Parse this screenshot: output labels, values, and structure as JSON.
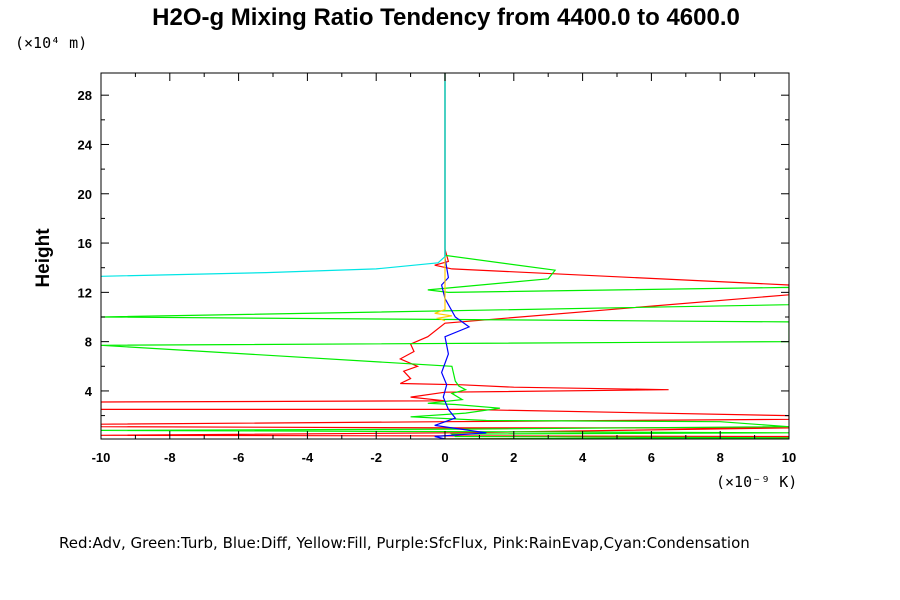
{
  "chart_data": {
    "type": "line",
    "title": "H2O-g Mixing Ratio Tendency from 4400.0 to 4600.0",
    "ylabel": "Height",
    "x_unit_label": "(×10⁻⁹ K)",
    "y_unit_label": "(×10⁴ m)",
    "caption": "Red:Adv, Green:Turb, Blue:Diff, Yellow:Fill, Purple:SfcFlux, Pink:RainEvap,Cyan:Condensation",
    "xlim": [
      -10,
      10
    ],
    "ylim": [
      0.1,
      29.8
    ],
    "xticks": [
      -10,
      -8,
      -6,
      -4,
      -2,
      0,
      2,
      4,
      6,
      8,
      10
    ],
    "yticks": [
      4,
      8,
      12,
      16,
      20,
      24,
      28
    ],
    "xtick_labels": [
      "-10",
      "-8",
      "-6",
      "-4",
      "-2",
      "0",
      "2",
      "4",
      "6",
      "8",
      "10"
    ],
    "ytick_labels": [
      "4",
      "8",
      "12",
      "16",
      "20",
      "24",
      "28"
    ],
    "grid": false,
    "series": [
      {
        "color": "#ff0000",
        "x": [
          0,
          0,
          0.1,
          -0.3,
          0.2,
          10,
          10,
          0,
          -0.5,
          -1,
          -0.9,
          -1.3,
          -0.8,
          -1.2,
          -1.0,
          -1.3,
          0.5,
          2,
          6.5,
          0,
          -1,
          0,
          -10,
          -10,
          0.5,
          10,
          10,
          0,
          -10,
          -10,
          0.5,
          10,
          0.3,
          -10,
          10,
          10,
          0
        ],
        "y": [
          29.8,
          15.5,
          14.5,
          14.2,
          13.9,
          12.6,
          11.8,
          9.5,
          8.4,
          7.8,
          7.2,
          6.6,
          6.0,
          5.6,
          5.0,
          4.6,
          4.5,
          4.3,
          4.1,
          3.9,
          3.5,
          3.2,
          3.1,
          2.5,
          2.5,
          2.0,
          1.7,
          1.5,
          1.3,
          1.1,
          1.0,
          1.0,
          0.6,
          0.4,
          0.3,
          0.2,
          0.1
        ]
      },
      {
        "color": "#00ee00",
        "x": [
          0,
          0,
          3.2,
          3.0,
          -0.5,
          0.1,
          10,
          10,
          -10,
          10,
          10,
          -10,
          0.2,
          0.3,
          0.4,
          0.6,
          0.2,
          0.5,
          -0.5,
          0.3,
          1.6,
          0.6,
          -1,
          1.2,
          8,
          10,
          0.5,
          -10,
          10,
          0.2,
          0.3,
          10,
          0
        ],
        "y": [
          29.8,
          15.0,
          13.8,
          13.1,
          12.2,
          12.0,
          12.4,
          11.0,
          10.0,
          9.6,
          8.0,
          7.7,
          6.0,
          4.8,
          4.4,
          4.1,
          3.8,
          3.3,
          3.0,
          2.9,
          2.6,
          2.2,
          1.9,
          1.6,
          1.5,
          1.1,
          0.9,
          0.8,
          0.6,
          0.5,
          0.3,
          0.2,
          0.1
        ]
      },
      {
        "color": "#0000ff",
        "x": [
          0,
          0,
          0.1,
          -0.1,
          0,
          0.3,
          0.7,
          0,
          0.1,
          -0.1,
          0.05,
          -0.05,
          0.1,
          0.3,
          -0.3,
          1.2,
          -0.3,
          0
        ],
        "y": [
          29.8,
          14.8,
          13.2,
          12.6,
          11.5,
          10.0,
          9.2,
          8.4,
          7.0,
          5.5,
          4.5,
          3.5,
          2.5,
          1.8,
          1.2,
          0.6,
          0.3,
          0.1
        ]
      },
      {
        "color": "#ffcc00",
        "x": [
          0,
          0,
          -0.3,
          0.2,
          -0.2,
          0
        ],
        "y": [
          29.8,
          10.6,
          10.3,
          10.1,
          9.9,
          9.7
        ]
      },
      {
        "color": "#00e5e5",
        "x": [
          0,
          0,
          -0.2,
          -2.0,
          -5.2,
          -10
        ],
        "y": [
          29.8,
          14.9,
          14.4,
          13.9,
          13.6,
          13.3
        ]
      }
    ]
  }
}
